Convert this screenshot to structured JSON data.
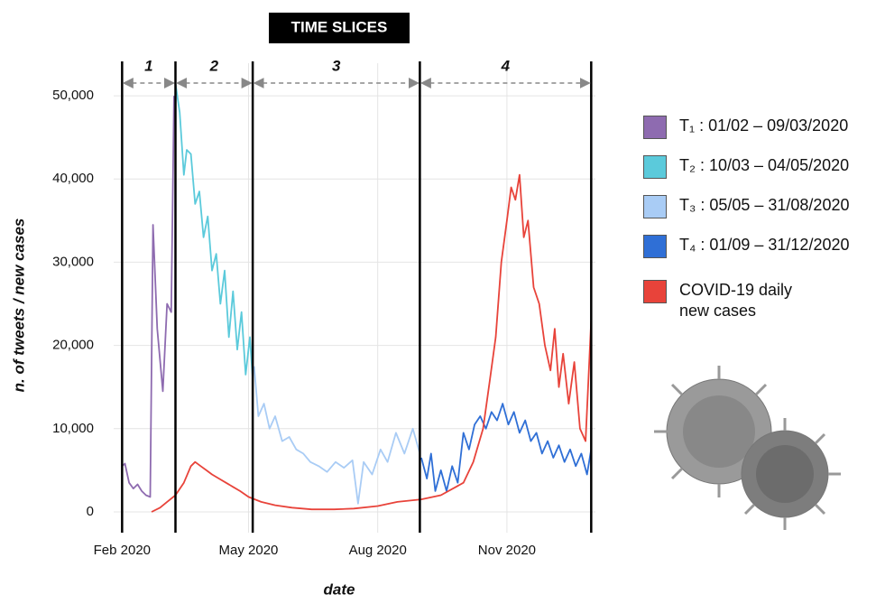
{
  "chart_data": {
    "type": "line",
    "banner": "TIME SLICES",
    "xlabel": "date",
    "ylabel": "n. of tweets / new cases",
    "xlim": [
      "2020-01-26",
      "2021-01-03"
    ],
    "xticks": [
      {
        "value": "2020-02-01",
        "label": "Feb 2020"
      },
      {
        "value": "2020-05-01",
        "label": "May 2020"
      },
      {
        "value": "2020-08-01",
        "label": "Aug 2020"
      },
      {
        "value": "2020-11-01",
        "label": "Nov 2020"
      }
    ],
    "ylim": [
      -2500,
      55000
    ],
    "yticks": [
      0,
      {
        "value": 10000,
        "label": "10,000"
      },
      {
        "value": 20000,
        "label": "20,000"
      },
      {
        "value": 30000,
        "label": "30,000"
      },
      {
        "value": 40000,
        "label": "40,000"
      },
      {
        "value": 50000,
        "label": "50,000"
      }
    ],
    "grid": true,
    "slices": [
      {
        "label": "1",
        "start": "2020-02-01",
        "end": "2020-03-10"
      },
      {
        "label": "2",
        "start": "2020-03-10",
        "end": "2020-05-04"
      },
      {
        "label": "3",
        "start": "2020-05-04",
        "end": "2020-08-31"
      },
      {
        "label": "4",
        "start": "2020-08-31",
        "end": "2020-12-31"
      }
    ],
    "series": [
      {
        "name": "T₁ : 01/02 – 09/03/2020",
        "color": "#8e6bb0",
        "x": [
          "2020-02-01",
          "2020-02-03",
          "2020-02-06",
          "2020-02-09",
          "2020-02-12",
          "2020-02-15",
          "2020-02-18",
          "2020-02-21",
          "2020-02-23",
          "2020-02-26",
          "2020-03-01",
          "2020-03-04",
          "2020-03-07",
          "2020-03-09"
        ],
        "values": [
          5500,
          5800,
          3500,
          2800,
          3300,
          2500,
          2000,
          1800,
          34500,
          22000,
          14500,
          25000,
          24000,
          50000
        ]
      },
      {
        "name": "T₂ : 10/03 – 04/05/2020",
        "color": "#5bcadb",
        "x": [
          "2020-03-10",
          "2020-03-13",
          "2020-03-16",
          "2020-03-18",
          "2020-03-21",
          "2020-03-24",
          "2020-03-27",
          "2020-03-30",
          "2020-04-02",
          "2020-04-05",
          "2020-04-08",
          "2020-04-11",
          "2020-04-14",
          "2020-04-17",
          "2020-04-20",
          "2020-04-23",
          "2020-04-26",
          "2020-04-29",
          "2020-05-02",
          "2020-05-04"
        ],
        "values": [
          51500,
          48000,
          40500,
          43500,
          43000,
          37000,
          38500,
          33000,
          35500,
          29000,
          31000,
          25000,
          29000,
          21000,
          26500,
          19500,
          24000,
          16500,
          21000,
          16000
        ]
      },
      {
        "name": "T₃ : 05/05 – 31/08/2020",
        "color": "#a9ccf5",
        "x": [
          "2020-05-05",
          "2020-05-08",
          "2020-05-12",
          "2020-05-16",
          "2020-05-20",
          "2020-05-25",
          "2020-05-30",
          "2020-06-04",
          "2020-06-09",
          "2020-06-14",
          "2020-06-20",
          "2020-06-26",
          "2020-07-02",
          "2020-07-08",
          "2020-07-14",
          "2020-07-18",
          "2020-07-22",
          "2020-07-28",
          "2020-08-03",
          "2020-08-08",
          "2020-08-14",
          "2020-08-20",
          "2020-08-26",
          "2020-08-31"
        ],
        "values": [
          17500,
          11500,
          13000,
          10000,
          11500,
          8500,
          9000,
          7500,
          7000,
          6000,
          5500,
          4800,
          6000,
          5300,
          6200,
          1000,
          6000,
          4500,
          7500,
          6000,
          9500,
          7000,
          10000,
          7000
        ]
      },
      {
        "name": "T₄ : 01/09 – 31/12/2020",
        "color": "#2f6fd6",
        "x": [
          "2020-09-01",
          "2020-09-05",
          "2020-09-08",
          "2020-09-11",
          "2020-09-15",
          "2020-09-19",
          "2020-09-23",
          "2020-09-27",
          "2020-10-01",
          "2020-10-05",
          "2020-10-09",
          "2020-10-13",
          "2020-10-17",
          "2020-10-21",
          "2020-10-25",
          "2020-10-29",
          "2020-11-02",
          "2020-11-06",
          "2020-11-10",
          "2020-11-14",
          "2020-11-18",
          "2020-11-22",
          "2020-11-26",
          "2020-11-30",
          "2020-12-04",
          "2020-12-08",
          "2020-12-12",
          "2020-12-16",
          "2020-12-20",
          "2020-12-24",
          "2020-12-28",
          "2020-12-31"
        ],
        "values": [
          6500,
          4000,
          7000,
          2500,
          5000,
          2500,
          5500,
          3500,
          9500,
          7500,
          10500,
          11500,
          10000,
          12000,
          11000,
          13000,
          10500,
          12000,
          9500,
          11000,
          8500,
          9500,
          7000,
          8500,
          6500,
          8000,
          6000,
          7500,
          5500,
          7000,
          4500,
          7500
        ]
      },
      {
        "name": "COVID-19 daily new cases",
        "color": "#e8433a",
        "x": [
          "2020-02-22",
          "2020-02-28",
          "2020-03-04",
          "2020-03-10",
          "2020-03-16",
          "2020-03-21",
          "2020-03-24",
          "2020-03-28",
          "2020-04-01",
          "2020-04-05",
          "2020-04-10",
          "2020-04-15",
          "2020-04-20",
          "2020-04-25",
          "2020-05-01",
          "2020-05-10",
          "2020-05-20",
          "2020-06-01",
          "2020-06-15",
          "2020-07-01",
          "2020-07-15",
          "2020-08-01",
          "2020-08-15",
          "2020-09-01",
          "2020-09-15",
          "2020-10-01",
          "2020-10-08",
          "2020-10-15",
          "2020-10-20",
          "2020-10-24",
          "2020-10-28",
          "2020-11-01",
          "2020-11-04",
          "2020-11-07",
          "2020-11-10",
          "2020-11-13",
          "2020-11-16",
          "2020-11-20",
          "2020-11-24",
          "2020-11-28",
          "2020-12-02",
          "2020-12-05",
          "2020-12-08",
          "2020-12-11",
          "2020-12-15",
          "2020-12-19",
          "2020-12-23",
          "2020-12-27",
          "2020-12-31"
        ],
        "values": [
          0,
          500,
          1200,
          2000,
          3500,
          5500,
          6000,
          5500,
          5000,
          4500,
          4000,
          3500,
          3000,
          2500,
          1800,
          1200,
          800,
          500,
          300,
          300,
          400,
          700,
          1200,
          1500,
          2000,
          3500,
          6000,
          10000,
          16000,
          21000,
          30000,
          35000,
          39000,
          37500,
          40500,
          33000,
          35000,
          27000,
          25000,
          20000,
          17000,
          22000,
          15000,
          19000,
          13000,
          18000,
          10000,
          8500,
          23000
        ]
      }
    ]
  }
}
